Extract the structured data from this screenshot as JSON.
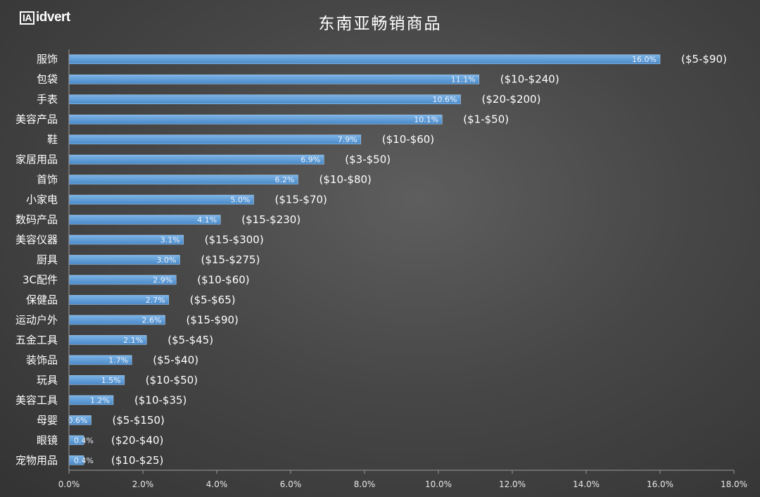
{
  "logo_text": "idvert",
  "logo_mark": "IA",
  "chart_data": {
    "type": "bar",
    "orientation": "horizontal",
    "title": "东南亚畅销商品",
    "categories": [
      "服饰",
      "包袋",
      "手表",
      "美容产品",
      "鞋",
      "家居用品",
      "首饰",
      "小家电",
      "数码产品",
      "美容仪器",
      "厨具",
      "3C配件",
      "保健品",
      "运动户外",
      "五金工具",
      "装饰品",
      "玩具",
      "美容工具",
      "母婴",
      "眼镜",
      "宠物用品"
    ],
    "values": [
      16.0,
      11.1,
      10.6,
      10.1,
      7.9,
      6.9,
      6.2,
      5.0,
      4.1,
      3.1,
      3.0,
      2.9,
      2.7,
      2.6,
      2.1,
      1.7,
      1.5,
      1.2,
      0.6,
      0.4,
      0.4
    ],
    "value_labels": [
      "16.0%",
      "11.1%",
      "10.6%",
      "10.1%",
      "7.9%",
      "6.9%",
      "6.2%",
      "5.0%",
      "4.1%",
      "3.1%",
      "3.0%",
      "2.9%",
      "2.7%",
      "2.6%",
      "2.1%",
      "1.7%",
      "1.5%",
      "1.2%",
      "0.6%",
      "0.4%",
      "0.4%"
    ],
    "price_ranges": [
      "($5-$90)",
      "($10-$240)",
      "($20-$200)",
      "($1-$50)",
      "($10-$60)",
      "($3-$50)",
      "($10-$80)",
      "($15-$70)",
      "($15-$230)",
      "($15-$300)",
      "($15-$275)",
      "($10-$60)",
      "($5-$65)",
      "($15-$90)",
      "($5-$45)",
      "($5-$40)",
      "($10-$50)",
      "($10-$35)",
      "($5-$150)",
      "($20-$40)",
      "($10-$25)"
    ],
    "xlim": [
      0,
      18
    ],
    "x_ticks": [
      0,
      2,
      4,
      6,
      8,
      10,
      12,
      14,
      16,
      18
    ],
    "x_tick_labels": [
      "0.0%",
      "2.0%",
      "4.0%",
      "6.0%",
      "8.0%",
      "10.0%",
      "12.0%",
      "14.0%",
      "16.0%",
      "18.0%"
    ],
    "grid": false,
    "bar_color": "#5b9bd5",
    "xlabel": "",
    "ylabel": ""
  }
}
